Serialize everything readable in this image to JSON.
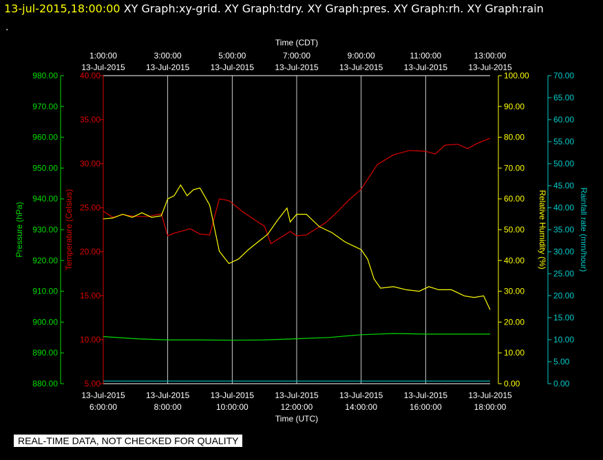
{
  "header": {
    "timestamp": "13-jul-2015,18:00:00",
    "graph_titles": "XY Graph:xy-grid.  XY Graph:tdry.  XY Graph:pres.  XY Graph:rh.  XY Graph:rain",
    "line2": "."
  },
  "footer": {
    "notice": "REAL-TIME DATA, NOT CHECKED FOR QUALITY"
  },
  "colors": {
    "background": "#000000",
    "grid": "#ffffff",
    "pressure": "#00dd00",
    "temperature": "#dd0000",
    "humidity": "#ffff00",
    "rainfall": "#00cccc"
  },
  "chart_data": {
    "type": "line",
    "x_range_utc_hours": [
      6,
      18
    ],
    "top_axis": {
      "label": "Time (CDT)",
      "ticks": [
        {
          "time": "1:00:00",
          "date": "13-Jul-2015"
        },
        {
          "time": "3:00:00",
          "date": "13-Jul-2015"
        },
        {
          "time": "5:00:00",
          "date": "13-Jul-2015"
        },
        {
          "time": "7:00:00",
          "date": "13-Jul-2015"
        },
        {
          "time": "9:00:00",
          "date": "13-Jul-2015"
        },
        {
          "time": "11:00:00",
          "date": "13-Jul-2015"
        },
        {
          "time": "13:00:00",
          "date": "13-Jul-2015"
        }
      ]
    },
    "bottom_axis": {
      "label": "Time (UTC)",
      "ticks": [
        {
          "time": "6:00:00",
          "date": "13-Jul-2015"
        },
        {
          "time": "8:00:00",
          "date": "13-Jul-2015"
        },
        {
          "time": "10:00:00",
          "date": "13-Jul-2015"
        },
        {
          "time": "12:00:00",
          "date": "13-Jul-2015"
        },
        {
          "time": "14:00:00",
          "date": "13-Jul-2015"
        },
        {
          "time": "16:00:00",
          "date": "13-Jul-2015"
        },
        {
          "time": "18:00:00",
          "date": "13-Jul-2015"
        }
      ]
    },
    "axes": {
      "pressure": {
        "label": "Pressure (hPa)",
        "range": [
          880,
          980
        ],
        "ticks": [
          "880.00",
          "890.00",
          "900.00",
          "910.00",
          "920.00",
          "930.00",
          "940.00",
          "950.00",
          "960.00",
          "970.00",
          "980.00"
        ]
      },
      "temperature": {
        "label": "Temperature (Celsius)",
        "range": [
          5,
          40
        ],
        "ticks": [
          "5.00",
          "10.00",
          "15.00",
          "20.00",
          "25.00",
          "30.00",
          "35.00",
          "40.00"
        ]
      },
      "humidity": {
        "label": "Relative Humidity (%)",
        "range": [
          0,
          100
        ],
        "ticks": [
          "0.00",
          "10.00",
          "20.00",
          "30.00",
          "40.00",
          "50.00",
          "60.00",
          "70.00",
          "80.00",
          "90.00",
          "100.00"
        ]
      },
      "rainfall": {
        "label": "Rainfall rate (mm/hour)",
        "range": [
          0,
          70
        ],
        "ticks": [
          "0.00",
          "5.00",
          "10.00",
          "15.00",
          "20.00",
          "25.00",
          "30.00",
          "35.00",
          "40.00",
          "45.00",
          "50.00",
          "55.00",
          "60.00",
          "65.00",
          "70.00"
        ]
      }
    },
    "series": [
      {
        "name": "tdry",
        "axis": "temperature",
        "x_hours": [
          6.0,
          6.3,
          6.6,
          7.0,
          7.4,
          7.8,
          8.0,
          8.2,
          8.4,
          8.7,
          9.0,
          9.3,
          9.6,
          9.9,
          10.3,
          10.7,
          11.0,
          11.2,
          11.5,
          11.8,
          12.0,
          12.3,
          12.6,
          12.9,
          13.2,
          13.6,
          14.0,
          14.5,
          15.0,
          15.5,
          16.0,
          16.3,
          16.6,
          17.0,
          17.3,
          17.6,
          18.0
        ],
        "values": [
          24.6,
          23.9,
          24.2,
          24.0,
          24.0,
          24.3,
          21.8,
          22.1,
          22.3,
          22.6,
          22.0,
          21.9,
          26.0,
          25.8,
          24.6,
          23.6,
          22.9,
          20.9,
          21.6,
          22.3,
          21.8,
          21.9,
          22.6,
          23.3,
          24.3,
          25.8,
          27.1,
          29.9,
          31.0,
          31.5,
          31.4,
          31.1,
          32.1,
          32.2,
          31.7,
          32.3,
          32.9
        ]
      },
      {
        "name": "rh",
        "axis": "humidity",
        "x_hours": [
          6.0,
          6.3,
          6.6,
          6.9,
          7.2,
          7.5,
          7.8,
          8.0,
          8.2,
          8.4,
          8.6,
          8.8,
          9.0,
          9.3,
          9.6,
          9.9,
          10.2,
          10.5,
          10.8,
          11.1,
          11.4,
          11.7,
          11.8,
          12.0,
          12.3,
          12.7,
          13.1,
          13.5,
          13.8,
          14.0,
          14.2,
          14.4,
          14.6,
          15.0,
          15.4,
          15.8,
          16.1,
          16.4,
          16.8,
          17.2,
          17.5,
          17.8,
          18.0
        ],
        "values": [
          53.5,
          53.8,
          55.0,
          54.0,
          55.5,
          54.0,
          54.5,
          60.0,
          61.0,
          64.5,
          61.0,
          63.0,
          63.5,
          58.0,
          43.0,
          39.0,
          40.5,
          43.5,
          46.0,
          48.5,
          53.0,
          57.0,
          52.5,
          55.0,
          55.0,
          51.0,
          49.0,
          46.0,
          44.5,
          43.5,
          40.5,
          34.0,
          31.0,
          31.5,
          30.5,
          30.0,
          31.5,
          30.5,
          30.5,
          28.5,
          28.0,
          28.5,
          24.0
        ]
      },
      {
        "name": "pres",
        "axis": "pressure",
        "x_hours": [
          6.0,
          7.0,
          8.0,
          9.0,
          10.0,
          11.0,
          12.0,
          13.0,
          14.0,
          15.0,
          16.0,
          17.0,
          18.0
        ],
        "values": [
          895.3,
          894.6,
          894.2,
          894.2,
          894.1,
          894.2,
          894.6,
          895.0,
          895.9,
          896.3,
          896.1,
          896.1,
          896.1
        ]
      },
      {
        "name": "rain",
        "axis": "rainfall",
        "x_hours": [
          6.0,
          18.0
        ],
        "values": [
          0.6,
          0.6
        ]
      }
    ]
  }
}
